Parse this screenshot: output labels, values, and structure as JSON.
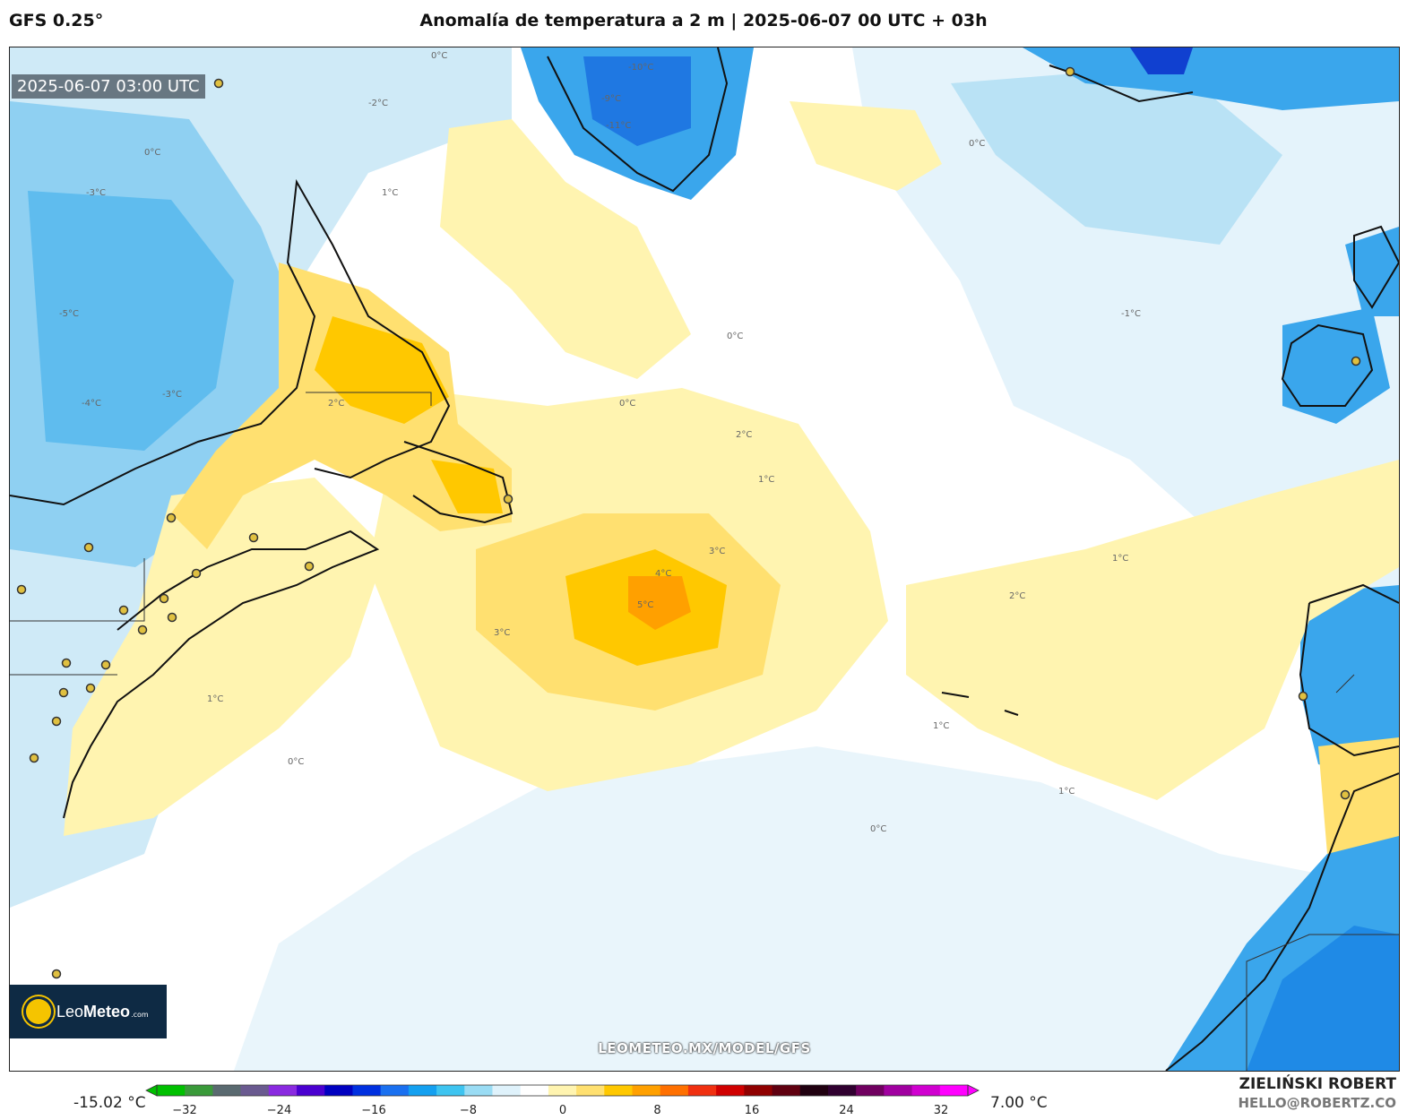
{
  "header": {
    "model": "GFS 0.25°",
    "title": "Anomalía de temperatura a 2 m | 2025-06-07 00 UTC + 03h"
  },
  "map": {
    "valid_time": "2025-06-07 03:00 UTC",
    "watermark": "LEOMETEO.MX/MODEL/GFS",
    "logo": {
      "brand_light": "Leo",
      "brand_bold": "Meteo",
      "suffix": ".com"
    },
    "contour_labels": [
      "0°C",
      "1°C",
      "2°C",
      "3°C",
      "4°C",
      "5°C",
      "-1°C",
      "-2°C",
      "-3°C",
      "-4°C",
      "-5°C",
      "-9°C",
      "-10°C",
      "-11°C"
    ]
  },
  "colorbar": {
    "min_label": "-15.02 °C",
    "max_label": "7.00 °C",
    "ticks": [
      "−32",
      "−24",
      "−16",
      "−8",
      "0",
      "8",
      "16",
      "24",
      "32"
    ],
    "colors": [
      "#00c000",
      "#3a9a3a",
      "#5a6a70",
      "#6a5a90",
      "#8a2ae0",
      "#4a00d0",
      "#0000c0",
      "#0030e0",
      "#1a70f0",
      "#14a0f0",
      "#3ec4f0",
      "#9adcf4",
      "#dff2fb",
      "#ffffff",
      "#fff4b0",
      "#ffe070",
      "#ffc800",
      "#ffa000",
      "#ff7000",
      "#f03010",
      "#d00000",
      "#900000",
      "#600010",
      "#200010",
      "#300030",
      "#700060",
      "#a000a0",
      "#d000d0",
      "#ff00ff"
    ]
  },
  "credits": {
    "author": "ZIELIŃSKI ROBERT",
    "email": "HELLO@ROBERTZ.CO"
  }
}
